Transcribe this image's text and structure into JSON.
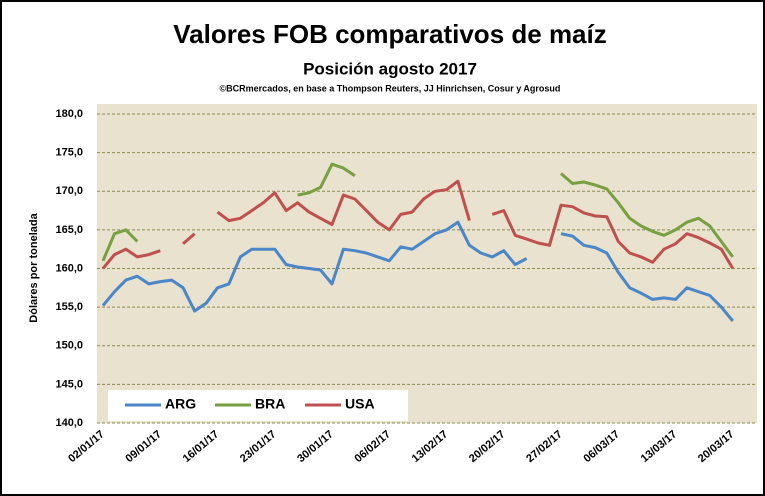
{
  "chart_data": {
    "type": "line",
    "title": "Valores FOB comparativos de maíz",
    "subtitle": "Posición agosto 2017",
    "source": "©BCRmercados, en base a Thompson Reuters, JJ Hinrichsen, Cosur y Agrosud",
    "y_label": "Dólares por tonelada",
    "categories": [
      "02/01/17",
      null,
      null,
      null,
      null,
      "09/01/17",
      null,
      null,
      null,
      null,
      "16/01/17",
      null,
      null,
      null,
      null,
      "23/01/17",
      null,
      null,
      null,
      null,
      "30/01/17",
      null,
      null,
      null,
      null,
      "06/02/17",
      null,
      null,
      null,
      null,
      "13/02/17",
      null,
      null,
      null,
      null,
      "20/02/17",
      null,
      null,
      null,
      null,
      "27/02/17",
      null,
      null,
      null,
      null,
      "06/03/17",
      null,
      null,
      null,
      null,
      "13/03/17",
      null,
      null,
      null,
      null,
      "20/03/17"
    ],
    "series": [
      {
        "name": "ARG",
        "color": "#4a86c8",
        "values": [
          155.2,
          157,
          158.5,
          159,
          158,
          158.3,
          158.5,
          157.5,
          154.5,
          155.5,
          157.5,
          158,
          161.5,
          162.5,
          162.5,
          162.5,
          160.5,
          160.2,
          160,
          159.8,
          158,
          162.5,
          162.3,
          162,
          161.5,
          161,
          162.8,
          162.5,
          163.5,
          164.5,
          165,
          166,
          163,
          162,
          161.5,
          162.3,
          160.5,
          161.3,
          null,
          null,
          164.5,
          164.2,
          163,
          162.7,
          162,
          159.5,
          157.5,
          156.8,
          156,
          156.2,
          156,
          157.5,
          157,
          156.5,
          155,
          153.2
        ]
      },
      {
        "name": "BRA",
        "color": "#77a040",
        "values": [
          161,
          164.5,
          165,
          163.5,
          null,
          null,
          null,
          null,
          null,
          null,
          null,
          null,
          null,
          null,
          null,
          null,
          null,
          169.5,
          169.8,
          170.5,
          173.5,
          173,
          172,
          null,
          null,
          null,
          null,
          null,
          null,
          null,
          null,
          null,
          null,
          null,
          null,
          null,
          null,
          null,
          null,
          null,
          172.3,
          171,
          171.2,
          170.8,
          170.3,
          168.5,
          166.5,
          165.5,
          164.8,
          164.3,
          165,
          166,
          166.5,
          165.5,
          163.5,
          161.5
        ]
      },
      {
        "name": "USA",
        "color": "#c0504d",
        "values": [
          160,
          161.8,
          162.5,
          161.5,
          161.8,
          162.3,
          null,
          163.2,
          164.5,
          null,
          167.3,
          166.2,
          166.5,
          167.5,
          168.5,
          169.8,
          167.5,
          168.5,
          167.3,
          166.5,
          165.7,
          169.5,
          169,
          167.5,
          166,
          165,
          167,
          167.3,
          169,
          170,
          170.2,
          171.3,
          166.2,
          null,
          167,
          167.5,
          164.3,
          163.8,
          163.3,
          163,
          168.2,
          168,
          167.2,
          166.8,
          166.7,
          163.5,
          162,
          161.5,
          160.8,
          162.5,
          163.2,
          164.5,
          164,
          163.3,
          162.5,
          160
        ]
      }
    ],
    "ylim": [
      140,
      180
    ],
    "yticks": [
      {
        "value": 140,
        "label": "140,0"
      },
      {
        "value": 145,
        "label": "145,0"
      },
      {
        "value": 150,
        "label": "150,0"
      },
      {
        "value": 155,
        "label": "155,0"
      },
      {
        "value": 160,
        "label": "160,0"
      },
      {
        "value": 165,
        "label": "165,0"
      },
      {
        "value": 170,
        "label": "170,0"
      },
      {
        "value": 175,
        "label": "175,0"
      },
      {
        "value": 180,
        "label": "180,0"
      }
    ],
    "grid": true,
    "legend": "lower left"
  }
}
